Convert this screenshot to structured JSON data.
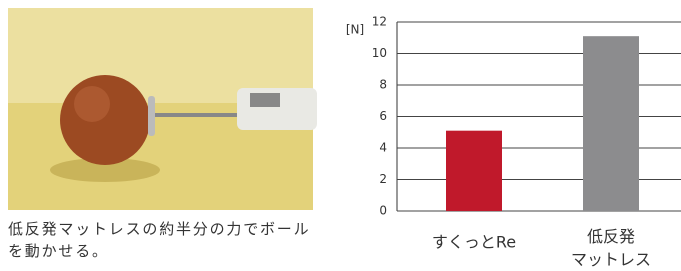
{
  "caption": "低反発マットレスの約半分の力でボールを動かせる。",
  "chart_data": {
    "type": "bar",
    "ylabel": "[N]",
    "categories": [
      "すくっとRe",
      "低反発\nマットレス"
    ],
    "values": [
      5.1,
      11.1
    ],
    "colors": [
      "#c0192b",
      "#8c8c8e"
    ],
    "ylim": [
      0,
      12
    ],
    "yticks": [
      0,
      2,
      4,
      6,
      8,
      10,
      12
    ],
    "grid": true
  }
}
